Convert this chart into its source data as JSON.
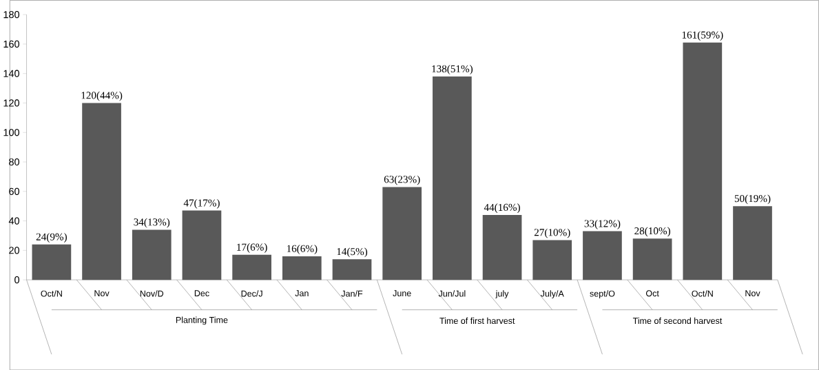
{
  "chart_data": {
    "type": "bar",
    "categories": [
      "Oct/N",
      "Nov",
      "Nov/D",
      "Dec",
      "Dec/J",
      "Jan",
      "Jan/F",
      "June",
      "Jun/Jul",
      "july",
      "July/A",
      "sept/O",
      "Oct",
      "Oct/N",
      "Nov"
    ],
    "values": [
      24,
      120,
      34,
      47,
      17,
      16,
      14,
      63,
      138,
      44,
      27,
      33,
      28,
      161,
      50
    ],
    "value_labels": [
      "24(9%)",
      "120(44%)",
      "34(13%)",
      "47(17%)",
      "17(6%)",
      "16(6%)",
      "14(5%)",
      "63(23%)",
      "138(51%)",
      "44(16%)",
      "27(10%)",
      "33(12%)",
      "28(10%)",
      "161(59%)",
      "50(19%)"
    ],
    "color": "#595959",
    "ylim": [
      0,
      180
    ],
    "yticks": [
      0,
      20,
      40,
      60,
      80,
      100,
      120,
      140,
      160,
      180
    ],
    "annotations": [
      "Planting Time",
      "Time of first harvest",
      "Time of second harvest"
    ]
  }
}
